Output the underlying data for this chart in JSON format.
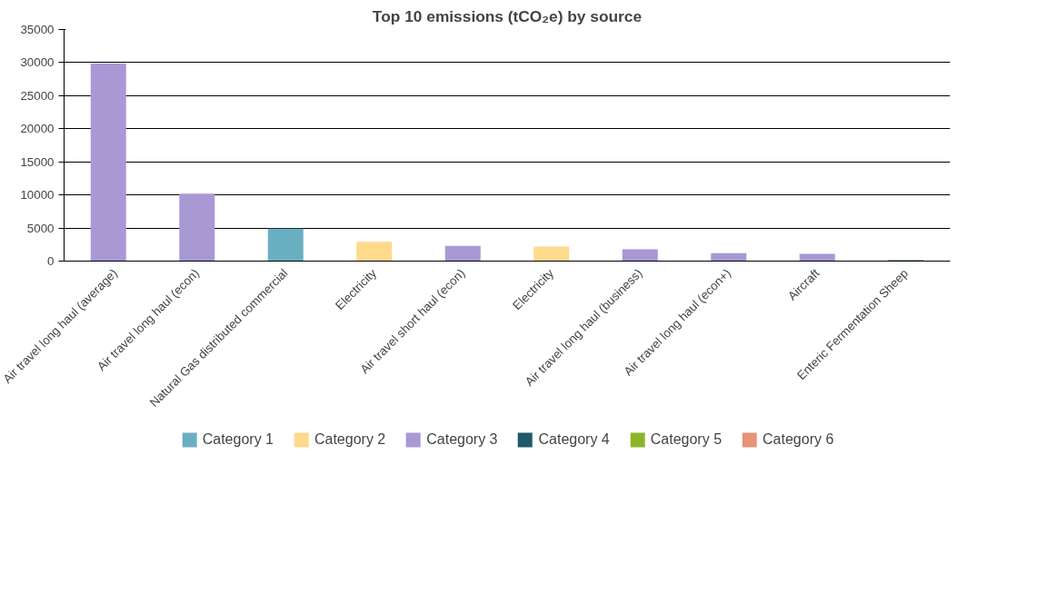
{
  "chart_data": {
    "type": "bar",
    "title": "Top 10 emissions (tCO₂e) by source",
    "categories": [
      "Air travel long haul (average)",
      "Air travel long haul (econ)",
      "Natural Gas distributed commercial",
      "Electricity",
      "Air travel short haul (econ)",
      "Electricity",
      "Air travel long haul (business)",
      "Air travel long haul (econ+)",
      "Aircraft",
      "Enteric Fermentation Sheep"
    ],
    "series": [
      {
        "name": "Category 1",
        "color": "#6aafc1",
        "values": [
          null,
          null,
          4900,
          null,
          null,
          null,
          null,
          null,
          null,
          null
        ]
      },
      {
        "name": "Category 2",
        "color": "#ffd98c",
        "values": [
          null,
          null,
          null,
          2900,
          null,
          2200,
          null,
          null,
          null,
          null
        ]
      },
      {
        "name": "Category 3",
        "color": "#a898d4",
        "values": [
          29900,
          10200,
          null,
          null,
          2300,
          null,
          1800,
          1200,
          1100,
          null
        ]
      },
      {
        "name": "Category 4",
        "color": "#215968",
        "values": [
          null,
          null,
          null,
          null,
          null,
          null,
          null,
          null,
          null,
          150
        ]
      },
      {
        "name": "Category 5",
        "color": "#8db52a",
        "values": [
          null,
          null,
          null,
          null,
          null,
          null,
          null,
          null,
          null,
          null
        ]
      },
      {
        "name": "Category 6",
        "color": "#e8937a",
        "values": [
          null,
          null,
          null,
          null,
          null,
          null,
          null,
          null,
          null,
          null
        ]
      }
    ],
    "ylim": [
      0,
      35000
    ],
    "yticks": [
      0,
      5000,
      10000,
      15000,
      20000,
      25000,
      30000,
      35000
    ],
    "grid": "y",
    "legend": "bottom"
  }
}
